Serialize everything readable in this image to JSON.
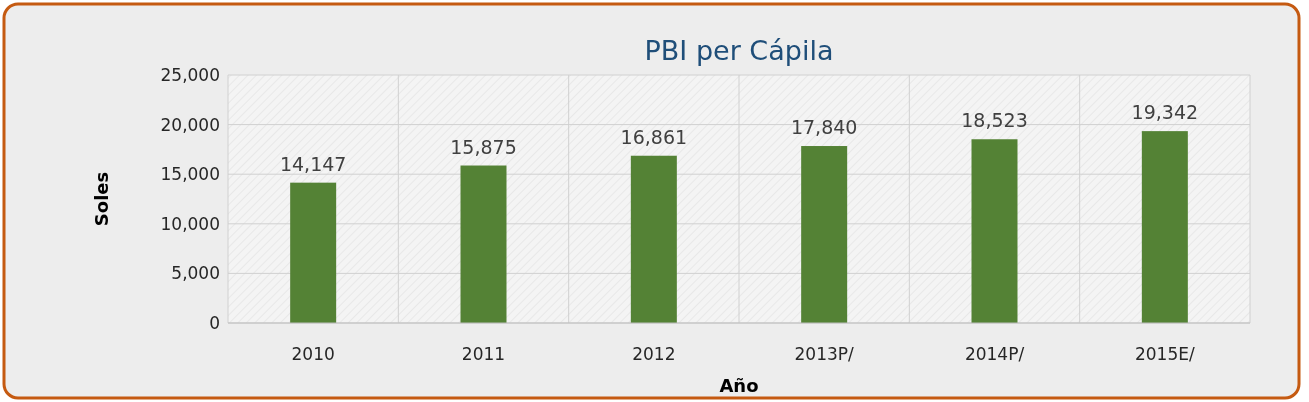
{
  "chart_data": {
    "type": "bar",
    "title": "PBI per Cápila",
    "xlabel": "Año",
    "ylabel": "Soles",
    "categories": [
      "2010",
      "2011",
      "2012",
      "2013P/",
      "2014P/",
      "2015E/"
    ],
    "values": [
      14147,
      15875,
      16861,
      17840,
      18523,
      19342
    ],
    "value_labels": [
      "14,147",
      "15,875",
      "16,861",
      "17,840",
      "18,523",
      "19,342"
    ],
    "color": "#548235",
    "ylim": [
      0,
      25000
    ],
    "yticks": [
      {
        "value": 0,
        "label": "0"
      },
      {
        "value": 5000,
        "label": "5,000"
      },
      {
        "value": 10000,
        "label": "10,000"
      },
      {
        "value": 15000,
        "label": "15,000"
      },
      {
        "value": 20000,
        "label": "20,000"
      },
      {
        "value": 25000,
        "label": "25,000"
      }
    ],
    "grid": true
  }
}
